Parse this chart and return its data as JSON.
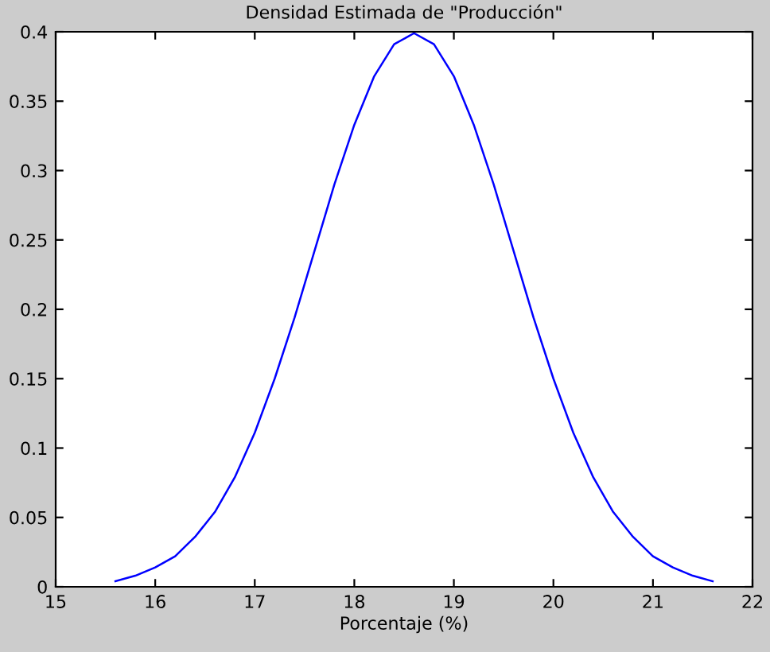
{
  "chart_data": {
    "type": "line",
    "title": "Densidad Estimada de \"Producción\"",
    "xlabel": "Porcentaje (%)",
    "x": [
      15.6,
      15.8,
      16.0,
      16.2,
      16.4,
      16.6,
      16.8,
      17.0,
      17.2,
      17.4,
      17.6,
      17.8,
      18.0,
      18.2,
      18.4,
      18.6,
      18.8,
      19.0,
      19.2,
      19.4,
      19.6,
      19.8,
      20.0,
      20.2,
      20.4,
      20.6,
      20.8,
      21.0,
      21.2,
      21.4,
      21.6
    ],
    "series": [
      {
        "color": "#0000ff",
        "values": [
          0.004,
          0.008,
          0.014,
          0.022,
          0.036,
          0.054,
          0.079,
          0.111,
          0.15,
          0.194,
          0.242,
          0.29,
          0.333,
          0.368,
          0.391,
          0.399,
          0.391,
          0.368,
          0.333,
          0.29,
          0.242,
          0.194,
          0.15,
          0.111,
          0.079,
          0.054,
          0.036,
          0.022,
          0.014,
          0.008,
          0.004
        ]
      }
    ],
    "xlim": [
      15,
      22
    ],
    "xticks": [
      15,
      16,
      17,
      18,
      19,
      20,
      21,
      22
    ],
    "ylim": [
      0,
      0.4
    ],
    "yticks": [
      0,
      0.05,
      0.1,
      0.15,
      0.2,
      0.25,
      0.3,
      0.35,
      0.4
    ],
    "grid": false,
    "marker": "none",
    "line_style": "solid"
  }
}
